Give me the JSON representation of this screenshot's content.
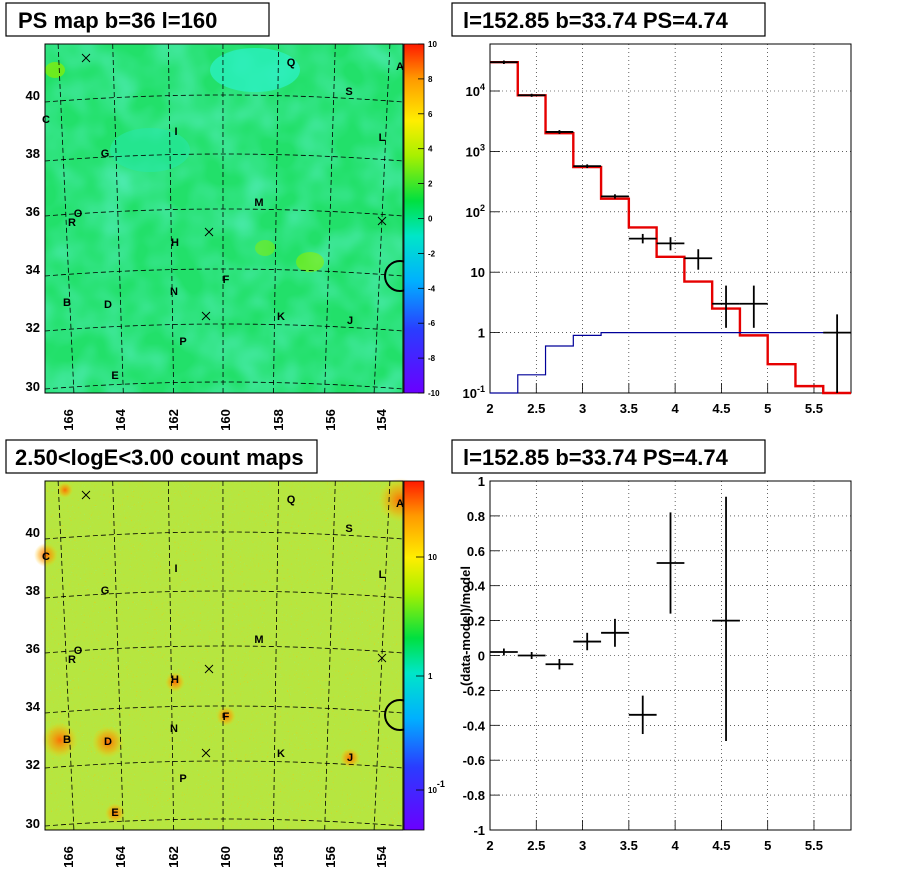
{
  "panels": {
    "tl_title": "PS map b=36 l=160",
    "tr_title": "l=152.85 b=33.74 PS=4.74",
    "bl_title": "2.50<logE<3.00 count maps",
    "br_title": "l=152.85 b=33.74 PS=4.74"
  },
  "maps": {
    "x_ticks": [
      "166",
      "164",
      "162",
      "160",
      "158",
      "156",
      "154"
    ],
    "y_ticks": [
      "40",
      "38",
      "36",
      "34",
      "32",
      "30"
    ],
    "ps_colorbar_ticks": [
      "10",
      "8",
      "6",
      "4",
      "2",
      "0",
      "-2",
      "-4",
      "-6",
      "-8",
      "-10"
    ],
    "count_colorbar_ticks": [
      "10",
      "1",
      "10-1"
    ],
    "sources": [
      {
        "name": "Q"
      },
      {
        "name": "A"
      },
      {
        "name": "S"
      },
      {
        "name": "C"
      },
      {
        "name": "I"
      },
      {
        "name": "L"
      },
      {
        "name": "G"
      },
      {
        "name": "M"
      },
      {
        "name": "R"
      },
      {
        "name": "O"
      },
      {
        "name": "H"
      },
      {
        "name": "F"
      },
      {
        "name": "N"
      },
      {
        "name": "B"
      },
      {
        "name": "D"
      },
      {
        "name": "K"
      },
      {
        "name": "J"
      },
      {
        "name": "P"
      },
      {
        "name": "E"
      }
    ]
  },
  "chart_data": [
    {
      "type": "line",
      "title": "l=152.85 b=33.74 PS=4.74",
      "xlim": [
        2,
        5.9
      ],
      "ylim": [
        0.1,
        60000
      ],
      "yscale": "log",
      "x_ticks": [
        "2",
        "2.5",
        "3",
        "3.5",
        "4",
        "4.5",
        "5",
        "5.5"
      ],
      "y_ticks": [
        "10-1",
        "1",
        "10",
        "102",
        "103",
        "104"
      ],
      "grid": true,
      "series": [
        {
          "color": "#e60000",
          "style": "step",
          "edges": [
            2.0,
            2.3,
            2.6,
            2.9,
            3.2,
            3.5,
            3.8,
            4.1,
            4.4,
            4.7,
            5.0,
            5.3,
            5.6,
            5.9
          ],
          "values": [
            30000,
            8500,
            2000,
            550,
            165,
            55,
            18,
            7,
            2.5,
            0.9,
            0.3,
            0.13,
            0.1
          ]
        },
        {
          "color": "#000099",
          "style": "step",
          "edges": [
            2.0,
            2.3,
            2.6,
            2.9,
            3.2,
            3.5,
            3.8,
            4.1,
            4.4,
            4.7,
            5.0,
            5.3,
            5.6,
            5.9
          ],
          "values": [
            0.05,
            0.2,
            0.6,
            0.9,
            1.0,
            1.0,
            1.0,
            1.0,
            1.0,
            1.0,
            1.0,
            1.0,
            1.0
          ]
        },
        {
          "color": "#000000",
          "style": "points",
          "x": [
            2.15,
            2.45,
            2.75,
            3.05,
            3.35,
            3.65,
            3.95,
            4.25,
            4.55,
            4.85,
            5.75
          ],
          "xerr": 0.15,
          "y": [
            30000,
            8500,
            2100,
            570,
            180,
            36,
            30,
            17,
            3,
            3,
            1
          ],
          "ylo": [
            28000,
            8000,
            1950,
            530,
            165,
            30,
            23,
            11,
            1.2,
            1.2,
            0.1
          ],
          "yhi": [
            32000,
            9000,
            2250,
            610,
            195,
            43,
            38,
            24,
            6,
            6,
            2
          ]
        }
      ]
    },
    {
      "type": "scatter",
      "title": "l=152.85 b=33.74 PS=4.74",
      "ylabel": "(data-model)/model",
      "xlim": [
        2,
        5.9
      ],
      "ylim": [
        -1,
        1
      ],
      "x_ticks": [
        "2",
        "2.5",
        "3",
        "3.5",
        "4",
        "4.5",
        "5",
        "5.5"
      ],
      "y_ticks": [
        "1",
        "0.8",
        "0.6",
        "0.4",
        "0.2",
        "0",
        "-0.2",
        "-0.4",
        "-0.6",
        "-0.8",
        "-1"
      ],
      "grid": true,
      "series": [
        {
          "color": "#000000",
          "x": [
            2.15,
            2.45,
            2.75,
            3.05,
            3.35,
            3.65,
            3.95,
            4.55
          ],
          "xerr": 0.15,
          "y": [
            0.02,
            0.0,
            -0.05,
            0.08,
            0.13,
            -0.34,
            0.53,
            0.2
          ],
          "ylo": [
            0.0,
            -0.02,
            -0.08,
            0.03,
            0.05,
            -0.45,
            0.24,
            -0.49
          ],
          "yhi": [
            0.04,
            0.02,
            -0.02,
            0.13,
            0.21,
            -0.23,
            0.82,
            0.91
          ]
        }
      ]
    }
  ]
}
